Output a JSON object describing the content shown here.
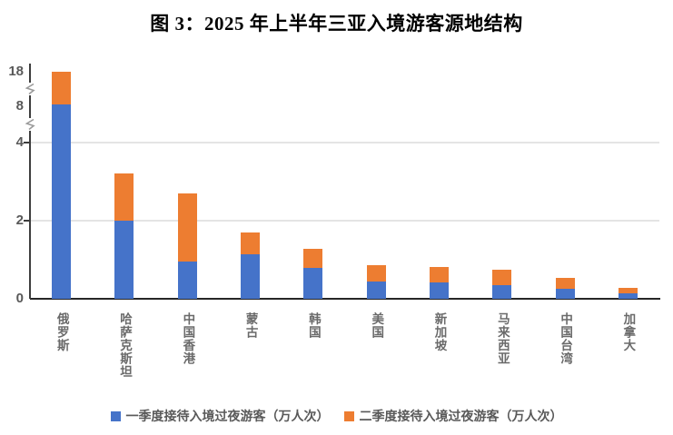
{
  "figure": {
    "title": "图 3：2025 年上半年三亚入境游客客源地结构"
  },
  "colors": {
    "series_q1": "#4573C9",
    "series_q2": "#ED7D31",
    "gridline": "#E4E4E4",
    "axis_line": "#3D3D3D",
    "baseline": "#262626",
    "tick_label": "#595959",
    "category_label": "#6A6A6A",
    "legend_text": "#595959",
    "axis_break": "#9A9A9A",
    "background": "#FFFFFF"
  },
  "chart_data": {
    "type": "bar",
    "stacked": true,
    "title": "图 3：2025 年上半年三亚入境游客源地结构",
    "categories": [
      "俄罗斯",
      "哈萨克斯坦",
      "中国香港",
      "蒙古",
      "韩国",
      "美国",
      "新加坡",
      "马来西亚",
      "中国台湾",
      "加拿大"
    ],
    "series": [
      {
        "name": "一季度接待入境过夜游客（万人次）",
        "color": "#4573C9",
        "values": [
          8.4,
          2.0,
          0.96,
          1.15,
          0.78,
          0.44,
          0.42,
          0.36,
          0.25,
          0.14
        ]
      },
      {
        "name": "二季度接待入境过夜游客（万人次）",
        "color": "#ED7D31",
        "values": [
          9.8,
          1.2,
          1.74,
          0.55,
          0.49,
          0.43,
          0.39,
          0.38,
          0.28,
          0.13
        ]
      }
    ],
    "stack_totals": [
      18.2,
      3.2,
      2.7,
      1.7,
      1.27,
      0.87,
      0.81,
      0.74,
      0.53,
      0.27
    ],
    "xlabel": "",
    "ylabel": "",
    "y_axis": {
      "ticks": [
        0,
        2,
        4,
        8,
        18
      ],
      "broken": true,
      "break_between": [
        [
          4,
          8
        ],
        [
          8,
          18
        ]
      ],
      "gridlines_at": [
        2,
        4
      ]
    },
    "legend_position": "bottom"
  }
}
